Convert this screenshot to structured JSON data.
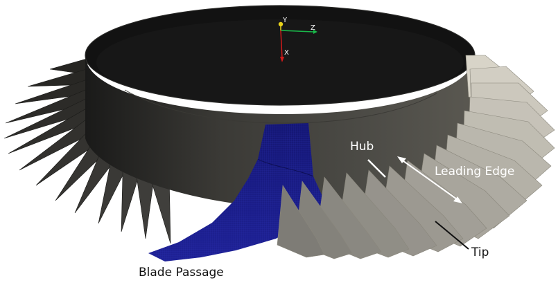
{
  "colors": {
    "background": "#ffffff",
    "ring_dark": "#131313",
    "ring_outer": "#474641",
    "blade_dark": "#2f2e2b",
    "blade_light": "#c7c3b5",
    "passage": "#1b1e8a",
    "axis_x": "#d21a1a",
    "axis_y": "#e8d21a",
    "axis_z": "#1ab84a",
    "annotation_light": "#ffffff",
    "annotation_dark": "#111111"
  },
  "labels": {
    "hub": "Hub",
    "leading_edge": "Leading Edge",
    "tip": "Tip",
    "blade_passage": "Blade Passage"
  },
  "axes": {
    "x": "X",
    "y": "Y",
    "z": "Z"
  }
}
